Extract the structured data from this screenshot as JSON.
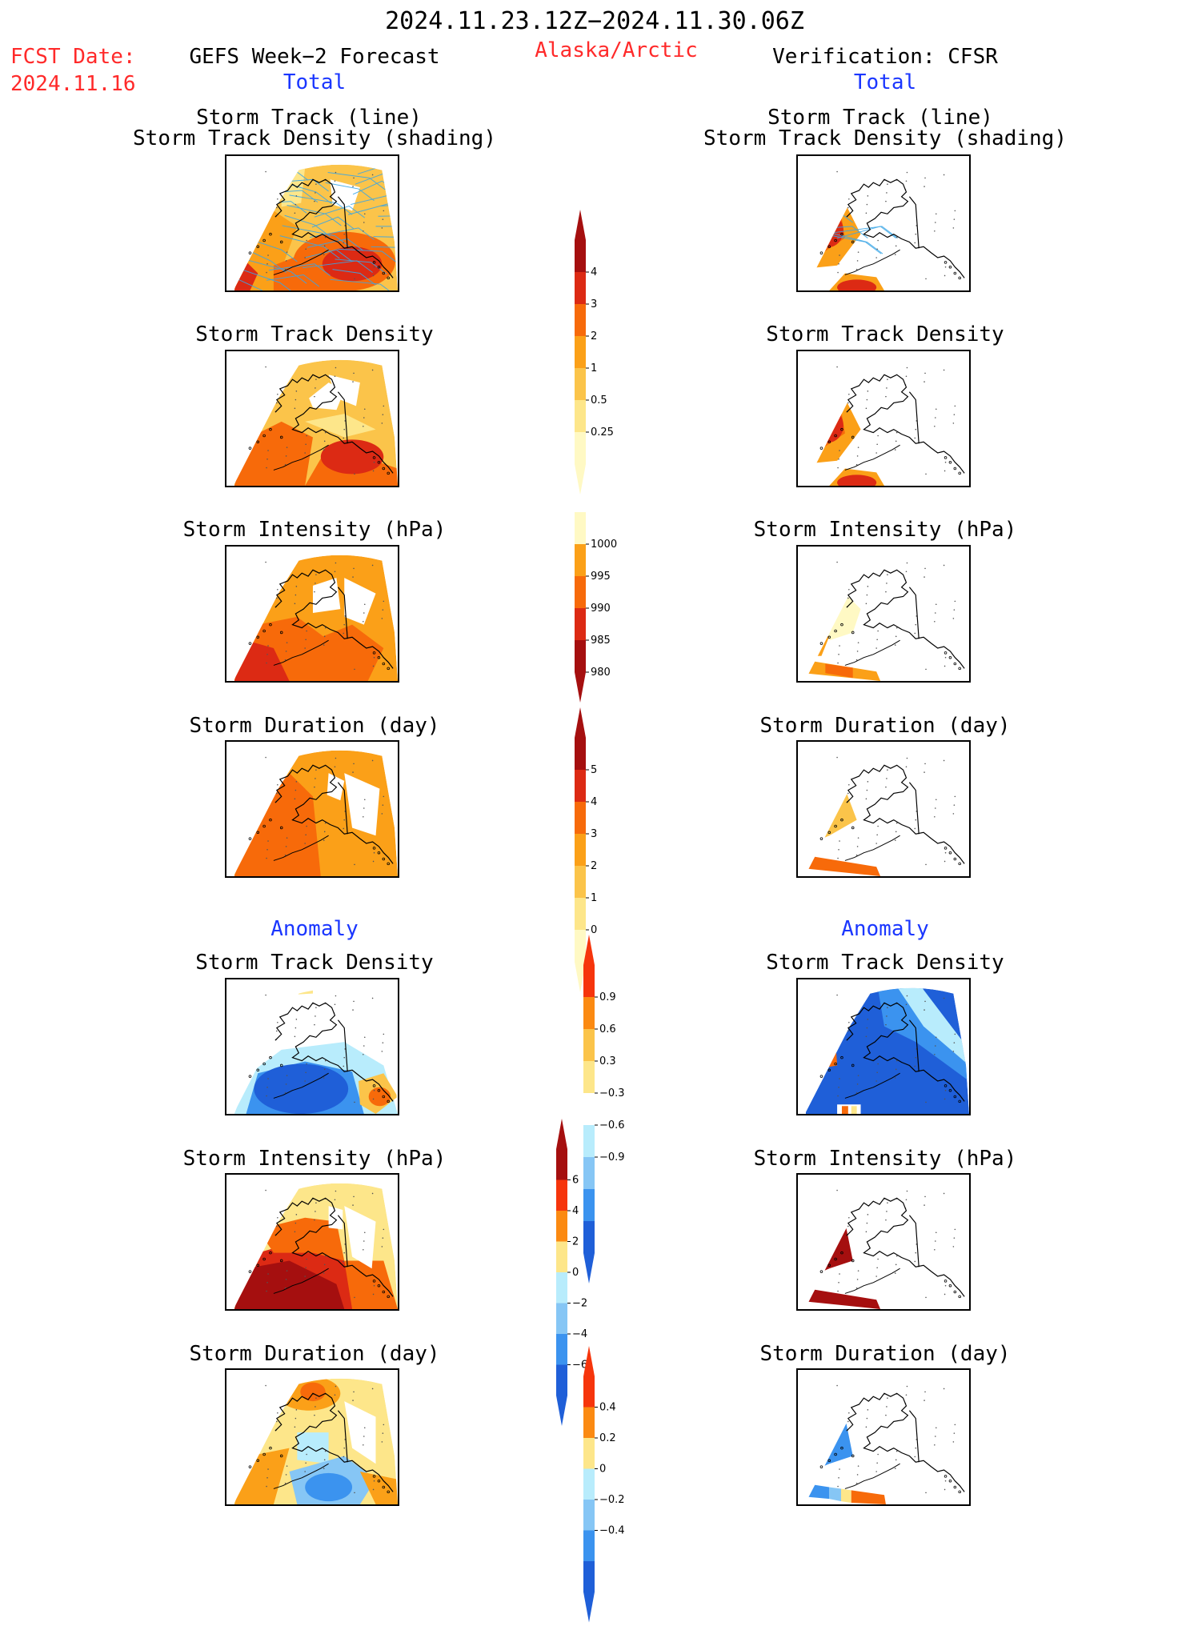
{
  "header": {
    "date_range": "2024.11.23.12Z−2024.11.30.06Z",
    "region": "Alaska/Arctic",
    "fcst_label": "FCST Date:",
    "fcst_date": "2024.11.16",
    "left_title": "GEFS Week−2 Forecast",
    "right_title": "Verification: CFSR",
    "total_label": "Total",
    "anomaly_label": "Anomaly"
  },
  "panels": {
    "track_line": "Storm Track (line)",
    "track_shading": "Storm Track Density (shading)",
    "density": "Storm Track Density",
    "intensity": "Storm Intensity (hPa)",
    "duration": "Storm Duration (day)"
  },
  "colorbars": {
    "density_total": {
      "ticks": [
        "4",
        "3",
        "2",
        "1",
        "0.5",
        "0.25"
      ],
      "colors": [
        "#a50f0f",
        "#dc2a14",
        "#f76a0a",
        "#fba018",
        "#fbc44a",
        "#fde68a",
        "#fff9c4"
      ]
    },
    "intensity_total": {
      "ticks": [
        "1000",
        "995",
        "990",
        "985",
        "980"
      ],
      "colors": [
        "#fff9c4",
        "#fba018",
        "#f76a0a",
        "#dc2a14",
        "#a50f0f"
      ]
    },
    "duration_total": {
      "ticks": [
        "5",
        "4",
        "3",
        "2",
        "1",
        "0"
      ],
      "colors": [
        "#a50f0f",
        "#dc2a14",
        "#f76a0a",
        "#fba018",
        "#fbc44a",
        "#fde68a",
        "#fff9c4"
      ]
    },
    "density_anom": {
      "ticks": [
        "0.9",
        "0.6",
        "0.3",
        "−0.3",
        "−0.6",
        "−0.9"
      ],
      "colors": [
        "#f6350c",
        "#fb8a12",
        "#fbc44a",
        "#fde68a",
        "#ffffff",
        "#b8ecfc",
        "#86c6f5",
        "#3b93ef",
        "#1f5fd8"
      ]
    },
    "intensity_anom": {
      "ticks": [
        "6",
        "4",
        "2",
        "0",
        "−2",
        "−4",
        "−6"
      ],
      "colors": [
        "#a50f0f",
        "#f6350c",
        "#fb8a12",
        "#fde68a",
        "#b8ecfc",
        "#86c6f5",
        "#3b93ef",
        "#1f5fd8"
      ]
    },
    "duration_anom": {
      "ticks": [
        "0.4",
        "0.2",
        "0",
        "−0.2",
        "−0.4"
      ],
      "colors": [
        "#f6350c",
        "#fb8a12",
        "#fde68a",
        "#b8ecfc",
        "#86c6f5",
        "#3b93ef",
        "#1f5fd8"
      ]
    }
  },
  "map_colors": {
    "dark_red": "#a50f0f",
    "red": "#dc2a14",
    "orange_red": "#f76a0a",
    "orange": "#fba018",
    "light_orange": "#fbc44a",
    "yellow": "#fde68a",
    "pale": "#fff9c4",
    "light_blue": "#b8ecfc",
    "sky": "#86c6f5",
    "blue": "#3b93ef",
    "dark_blue": "#1f5fd8",
    "track_line": "#3aa6e6"
  }
}
